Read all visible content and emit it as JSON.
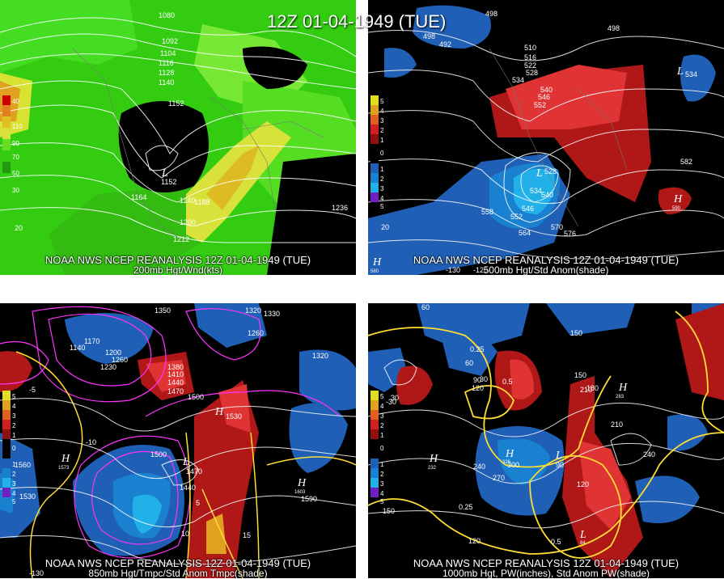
{
  "main_title": "12Z 01-04-1949 (TUE)",
  "panels": [
    {
      "caption_line1": "NOAA NWS NCEP REANALYSIS 12Z 01-04-1949 (TUE)",
      "caption_line2": "200mb Hgt/Wnd(kts)",
      "legend": [
        "40",
        "110",
        "90",
        "70",
        "50",
        "30"
      ],
      "contour_labels": [
        "1080",
        "1092",
        "1104",
        "1116",
        "1128",
        "1140",
        "1152",
        "1164",
        "1152",
        "1140",
        "1188",
        "1200",
        "1212",
        "1236",
        "20"
      ],
      "lows": [
        {
          "label": "L",
          "value": "1152"
        }
      ]
    },
    {
      "caption_line1": "NOAA NWS NCEP REANALYSIS 12Z 01-04-1949 (TUE)",
      "caption_line2": "500mb Hgt/Std Anom(shade)",
      "legend": [
        "5",
        "4",
        "3",
        "2",
        "1",
        "0",
        "1",
        "2",
        "3",
        "4",
        "5"
      ],
      "contour_labels": [
        "498",
        "492",
        "498",
        "510",
        "516",
        "522",
        "528",
        "534",
        "540",
        "546",
        "552",
        "498",
        "534",
        "582",
        "528",
        "534",
        "540",
        "546",
        "552",
        "558",
        "564",
        "570",
        "576",
        "20",
        "-130",
        "-120"
      ],
      "highs": [
        {
          "label": "H",
          "value": "590"
        },
        {
          "label": "H",
          "value": "580"
        }
      ],
      "lows": [
        {
          "label": "L",
          "value": "534"
        },
        {
          "label": "L",
          "value": "528"
        }
      ]
    },
    {
      "caption_line1": "NOAA NWS NCEP REANALYSIS 12Z 01-04-1949 (TUE)",
      "caption_line2": "850mb Hgt/Tmpc/Std Anom Tmpc(shade)",
      "legend": [
        "5",
        "4",
        "3",
        "2",
        "1",
        "0",
        "1",
        "2",
        "3",
        "4",
        "5"
      ],
      "contour_labels": [
        "1350",
        "1320",
        "1330",
        "1260",
        "1320",
        "1140",
        "1170",
        "1200",
        "1230",
        "1260",
        "1380",
        "1410",
        "1440",
        "1470",
        "1500",
        "1530",
        "1500",
        "1470",
        "1440",
        "1560",
        "1530",
        "1590",
        "10",
        "5",
        "-5",
        "-10",
        "15",
        "-130"
      ],
      "highs": [
        {
          "label": "H",
          "value": "1573"
        },
        {
          "label": "H",
          "value": "1603"
        },
        {
          "label": "H",
          "value": "1535"
        }
      ],
      "lows": [
        {
          "label": "L",
          "value": "1313"
        }
      ]
    },
    {
      "caption_line1": "NOAA NWS NCEP REANALYSIS 12Z 01-04-1949 (TUE)",
      "caption_line2": "1000mb Hgt, PW(inches), Std Anom PW(shade)",
      "legend": [
        "5",
        "4",
        "3",
        "2",
        "1",
        "0",
        "1",
        "2",
        "3",
        "4",
        "5"
      ],
      "contour_labels": [
        "60",
        "150",
        "30",
        "60",
        "90",
        "120",
        "150",
        "180",
        "210",
        "240",
        "270",
        "300",
        "240",
        "210",
        "120",
        "90",
        "0.25",
        "0.5",
        "0.25",
        "0.5",
        "150",
        "120",
        "-30",
        "30"
      ],
      "highs": [
        {
          "label": "H",
          "value": "232"
        },
        {
          "label": "H",
          "value": "326"
        },
        {
          "label": "H",
          "value": "283"
        }
      ],
      "lows": [
        {
          "label": "L",
          "value": "84"
        },
        {
          "label": "L",
          "value": "49"
        }
      ]
    }
  ]
}
